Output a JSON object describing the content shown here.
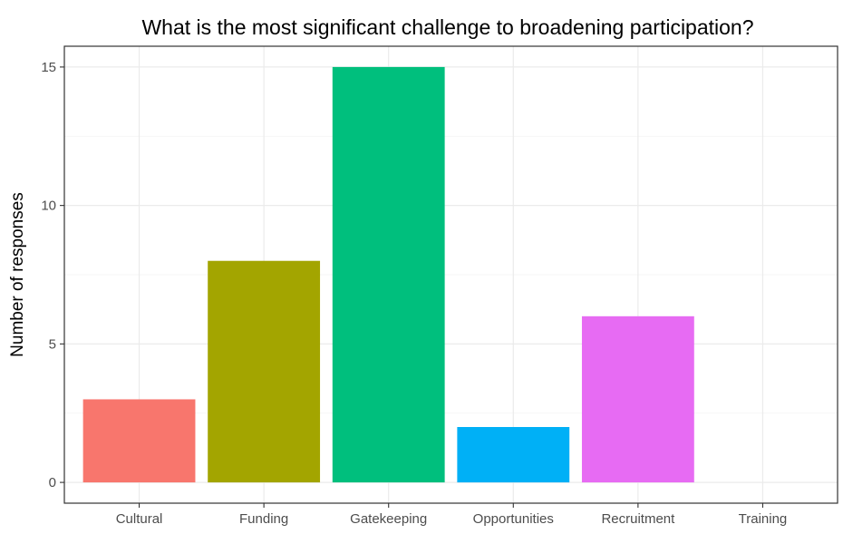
{
  "chart_data": {
    "type": "bar",
    "title": "What is the most significant challenge to broadening participation?",
    "xlabel": "",
    "ylabel": "Number of responses",
    "categories": [
      "Cultural",
      "Funding",
      "Gatekeeping",
      "Opportunities",
      "Recruitment",
      "Training"
    ],
    "values": [
      3,
      8,
      15,
      2,
      6,
      0
    ],
    "colors": [
      "#F8766D",
      "#A3A500",
      "#00BF7D",
      "#00B0F6",
      "#E76BF3",
      "#E76BF3"
    ],
    "ylim": [
      -0.75,
      15.75
    ],
    "yticks": [
      0,
      5,
      10,
      15
    ],
    "ytick_labels": [
      "0",
      "5",
      "10",
      "15"
    ],
    "grid": true,
    "legend": "none"
  }
}
